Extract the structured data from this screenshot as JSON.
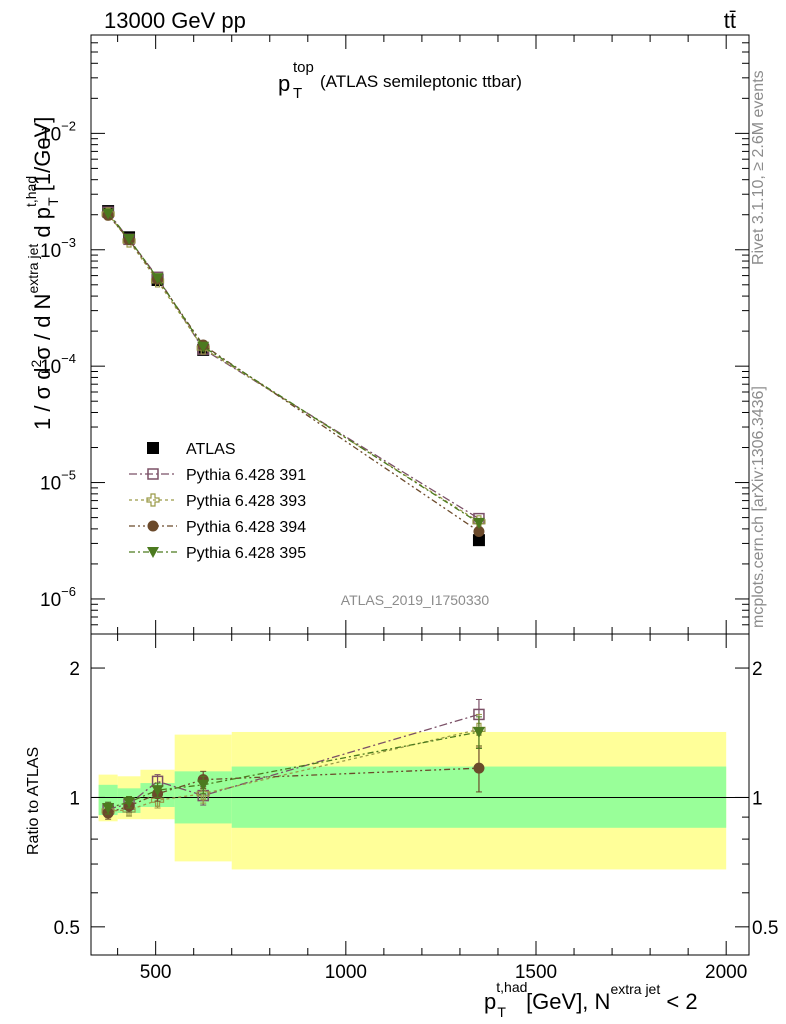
{
  "header": {
    "left": "13000 GeV pp",
    "right": "tt̄"
  },
  "side_text": {
    "rivet": "Rivet 3.1.10, ≥ 2.6M events",
    "mcplots": "mcplots.cern.ch [arXiv:1306.3436]"
  },
  "watermark": "ATLAS_2019_I1750330",
  "plot_title": {
    "main": "p",
    "sup": "top",
    "sub": "T",
    "rest": "(ATLAS semileptonic ttbar)"
  },
  "colors": {
    "atlas": "#000000",
    "py391": "#7b5067",
    "py393": "#9a9a47",
    "py394": "#6b4a2b",
    "py395": "#4c7a1f",
    "band_inner": "#99ff99",
    "band_outer": "#ffff99"
  },
  "chart_data": [
    {
      "type": "scatter",
      "panel": "main",
      "ylabel": "1 / σ d²σ / d N^(extra jet) d p_T^(t,had) [1/GeV]",
      "yscale": "log",
      "ylim": [
        5e-07,
        0.07
      ],
      "xlim": [
        330,
        2060
      ],
      "yticks": [
        {
          "value": 1e-06,
          "label": "10",
          "exp": "−6"
        },
        {
          "value": 1e-05,
          "label": "10",
          "exp": "−5"
        },
        {
          "value": 0.0001,
          "label": "10",
          "exp": "−4"
        },
        {
          "value": 0.001,
          "label": "10",
          "exp": "−3"
        },
        {
          "value": 0.01,
          "label": "10",
          "exp": "−2"
        }
      ],
      "x": [
        375,
        430,
        505,
        625,
        1350
      ],
      "series": [
        {
          "name": "ATLAS",
          "values": [
            0.00215,
            0.00128,
            0.00055,
            0.000138,
            3.2e-06
          ]
        },
        {
          "name": "Pythia 6.428 391",
          "values": [
            0.0021,
            0.00123,
            0.00058,
            0.00014,
            4.9e-06
          ]
        },
        {
          "name": "Pythia 6.428 393",
          "values": [
            0.00203,
            0.00119,
            0.00054,
            0.000143,
            4.6e-06
          ]
        },
        {
          "name": "Pythia 6.428 394",
          "values": [
            0.00198,
            0.00122,
            0.00056,
            0.000152,
            3.8e-06
          ]
        },
        {
          "name": "Pythia 6.428 395",
          "values": [
            0.00205,
            0.00124,
            0.00057,
            0.000147,
            4.5e-06
          ]
        }
      ],
      "legend_position": "lower-left"
    },
    {
      "type": "scatter",
      "panel": "ratio",
      "ylabel": "Ratio to ATLAS",
      "xlabel": "p_T^(t,had) [GeV], N^(extra jet) < 2",
      "yscale": "log",
      "ylim": [
        0.43,
        2.4
      ],
      "xlim": [
        330,
        2060
      ],
      "yticks": [
        0.5,
        1,
        2
      ],
      "xticks": [
        500,
        1000,
        1500,
        2000
      ],
      "bands": [
        {
          "x_low": 350,
          "x_high": 400,
          "inner": [
            0.91,
            1.07
          ],
          "outer": [
            0.88,
            1.13
          ]
        },
        {
          "x_low": 400,
          "x_high": 460,
          "inner": [
            0.92,
            1.05
          ],
          "outer": [
            0.89,
            1.12
          ]
        },
        {
          "x_low": 460,
          "x_high": 550,
          "inner": [
            0.95,
            1.08
          ],
          "outer": [
            0.89,
            1.16
          ]
        },
        {
          "x_low": 550,
          "x_high": 700,
          "inner": [
            0.87,
            1.15
          ],
          "outer": [
            0.71,
            1.4
          ]
        },
        {
          "x_low": 700,
          "x_high": 2000,
          "inner": [
            0.85,
            1.18
          ],
          "outer": [
            0.68,
            1.42
          ]
        }
      ],
      "x": [
        375,
        430,
        505,
        625,
        1350
      ],
      "series": [
        {
          "name": "Pythia 6.428 391",
          "values": [
            0.94,
            0.965,
            1.09,
            1.01,
            1.56
          ],
          "err": [
            0.03,
            0.03,
            0.04,
            0.05,
            0.13
          ]
        },
        {
          "name": "Pythia 6.428 393",
          "values": [
            0.93,
            0.935,
            0.985,
            1.02,
            1.44
          ],
          "err": [
            0.03,
            0.03,
            0.04,
            0.05,
            0.12
          ]
        },
        {
          "name": "Pythia 6.428 394",
          "values": [
            0.92,
            0.955,
            1.02,
            1.1,
            1.17
          ],
          "err": [
            0.03,
            0.03,
            0.04,
            0.05,
            0.14
          ]
        },
        {
          "name": "Pythia 6.428 395",
          "values": [
            0.945,
            0.975,
            1.04,
            1.07,
            1.42
          ],
          "err": [
            0.03,
            0.03,
            0.04,
            0.05,
            0.12
          ]
        }
      ]
    }
  ]
}
